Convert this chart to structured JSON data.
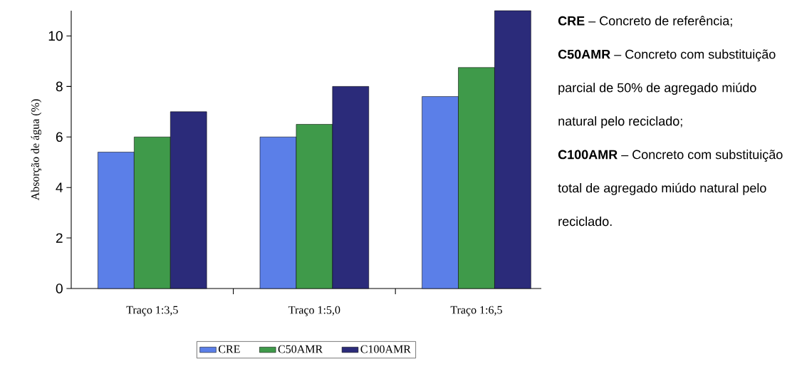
{
  "chart_data": {
    "type": "bar",
    "ylabel": "Absorção de água (%)",
    "categories": [
      "Traço 1:3,5",
      "Traço 1:5,0",
      "Traço 1:6,5"
    ],
    "series": [
      {
        "name": "CRE",
        "color": "#5b7fe8",
        "values": [
          5.4,
          6.0,
          7.6
        ]
      },
      {
        "name": "C50AMR",
        "color": "#3f9a4a",
        "values": [
          6.0,
          6.5,
          8.75
        ]
      },
      {
        "name": "C100AMR",
        "color": "#2b2b7a",
        "values": [
          7.0,
          8.0,
          11.0
        ]
      }
    ],
    "ylim": [
      0,
      11
    ],
    "yticks": [
      0,
      2,
      4,
      6,
      8,
      10
    ],
    "legend": "bottom",
    "annotations": [
      "**CRE** – Concreto de referência;",
      "**C50AMR** – Concreto com substituição parcial de 50% de agregado miúdo natural pelo reciclado;",
      "**C100AMR** – Concreto com substituição total de agregado miúdo natural pelo reciclado."
    ]
  }
}
